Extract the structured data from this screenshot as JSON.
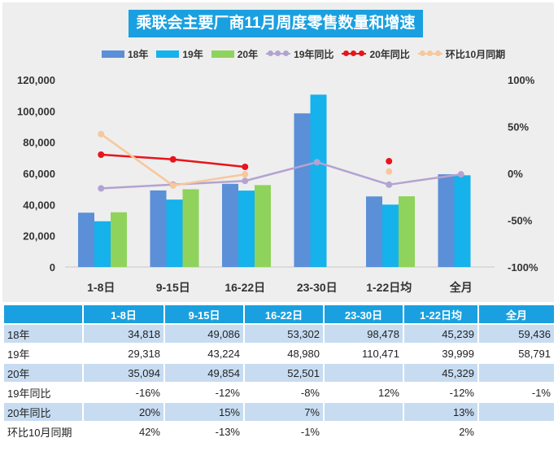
{
  "title": "乘联会主要厂商11月周度零售数量和增速",
  "legend": [
    {
      "label": "18年",
      "kind": "bar",
      "color": "#5b8fd8"
    },
    {
      "label": "19年",
      "kind": "bar",
      "color": "#15b2ec"
    },
    {
      "label": "20年",
      "kind": "bar",
      "color": "#8fd35c"
    },
    {
      "label": "19年同比",
      "kind": "line",
      "color": "#b3a3d0"
    },
    {
      "label": "20年同比",
      "kind": "line",
      "color": "#e8141b"
    },
    {
      "label": "环比10月同期",
      "kind": "line",
      "color": "#f8c79a"
    }
  ],
  "chart_data": {
    "type": "bar",
    "title": "乘联会主要厂商11月周度零售数量和增速",
    "categories": [
      "1-8日",
      "9-15日",
      "16-22日",
      "23-30日",
      "1-22日均",
      "全月"
    ],
    "ylim": [
      0,
      120000
    ],
    "yticks": [
      "0",
      "20,000",
      "40,000",
      "60,000",
      "80,000",
      "100,000",
      "120,000"
    ],
    "y2lim": [
      -100,
      100
    ],
    "y2ticks": [
      "-100%",
      "-50%",
      "0%",
      "50%",
      "100%"
    ],
    "series": [
      {
        "name": "18年",
        "type": "bar",
        "color": "#5b8fd8",
        "values": [
          34818,
          49086,
          53302,
          98478,
          45239,
          59436
        ]
      },
      {
        "name": "19年",
        "type": "bar",
        "color": "#15b2ec",
        "values": [
          29318,
          43224,
          48980,
          110471,
          39999,
          58791
        ]
      },
      {
        "name": "20年",
        "type": "bar",
        "color": "#8fd35c",
        "values": [
          35094,
          49854,
          52501,
          null,
          45329,
          null
        ]
      },
      {
        "name": "19年同比",
        "type": "line",
        "axis": "right",
        "color": "#b3a3d0",
        "values": [
          -16,
          -12,
          -8,
          12,
          -12,
          -1
        ]
      },
      {
        "name": "20年同比",
        "type": "line",
        "axis": "right",
        "color": "#e8141b",
        "values": [
          20,
          15,
          7,
          null,
          13,
          null
        ]
      },
      {
        "name": "环比10月同期",
        "type": "line",
        "axis": "right",
        "color": "#f8c79a",
        "values": [
          42,
          -13,
          -1,
          null,
          2,
          null
        ]
      }
    ]
  },
  "table": {
    "header": [
      "",
      "1-8日",
      "9-15日",
      "16-22日",
      "23-30日",
      "1-22日均",
      "全月"
    ],
    "rows": [
      {
        "label": "18年",
        "cells": [
          "34,818",
          "49,086",
          "53,302",
          "98,478",
          "45,239",
          "59,436"
        ]
      },
      {
        "label": "19年",
        "cells": [
          "29,318",
          "43,224",
          "48,980",
          "110,471",
          "39,999",
          "58,791"
        ]
      },
      {
        "label": "20年",
        "cells": [
          "35,094",
          "49,854",
          "52,501",
          "",
          "45,329",
          ""
        ]
      },
      {
        "label": "19年同比",
        "cells": [
          "-16%",
          "-12%",
          "-8%",
          "12%",
          "-12%",
          "-1%"
        ]
      },
      {
        "label": "20年同比",
        "cells": [
          "20%",
          "15%",
          "7%",
          "",
          "13%",
          ""
        ]
      },
      {
        "label": "环比10月同期",
        "cells": [
          "42%",
          "-13%",
          "-1%",
          "",
          "2%",
          ""
        ]
      }
    ]
  }
}
